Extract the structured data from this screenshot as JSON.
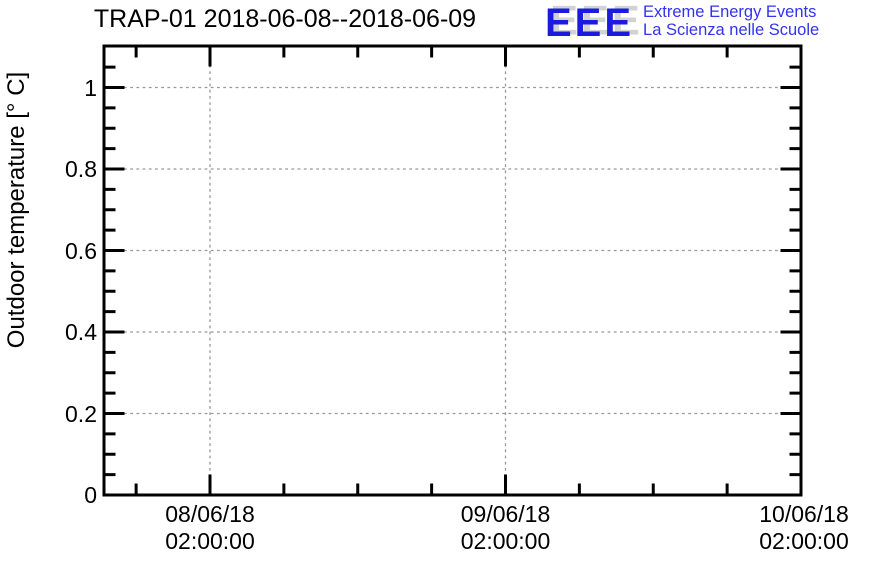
{
  "header": {
    "title": "TRAP-01 2018-06-08--2018-06-09"
  },
  "logo": {
    "acronym": "EEE",
    "tagline_line1": "Extreme Energy Events",
    "tagline_line2": "La Scienza nelle Scuole",
    "acronym_color": "#1b1bdf",
    "acronym_shadow_color": "#d2d2d2",
    "tagline_color": "#3333ee"
  },
  "chart_data": {
    "type": "line",
    "title": "TRAP-01 2018-06-08--2018-06-09",
    "xlabel": "",
    "ylabel": "Outdoor temperature [° C]",
    "series": [],
    "x_axis": {
      "kind": "datetime",
      "major_ticks": [
        {
          "date": "08/06/18",
          "time": "02:00:00"
        },
        {
          "date": "09/06/18",
          "time": "02:00:00"
        },
        {
          "date": "10/06/18",
          "time": "02:00:00"
        }
      ],
      "minor_divisions_per_major": 4
    },
    "y_axis": {
      "major_ticks": [
        {
          "value": 0,
          "label": "0"
        },
        {
          "value": 0.2,
          "label": "0.2"
        },
        {
          "value": 0.4,
          "label": "0.4"
        },
        {
          "value": 0.6,
          "label": "0.6"
        },
        {
          "value": 0.8,
          "label": "0.8"
        },
        {
          "value": 1.0,
          "label": "1"
        }
      ],
      "minor_step": 0.05,
      "range": [
        0,
        1.1
      ]
    },
    "grid": "dotted",
    "grid_color": "#999999",
    "axis_color": "#000000",
    "background_color": "#ffffff"
  }
}
